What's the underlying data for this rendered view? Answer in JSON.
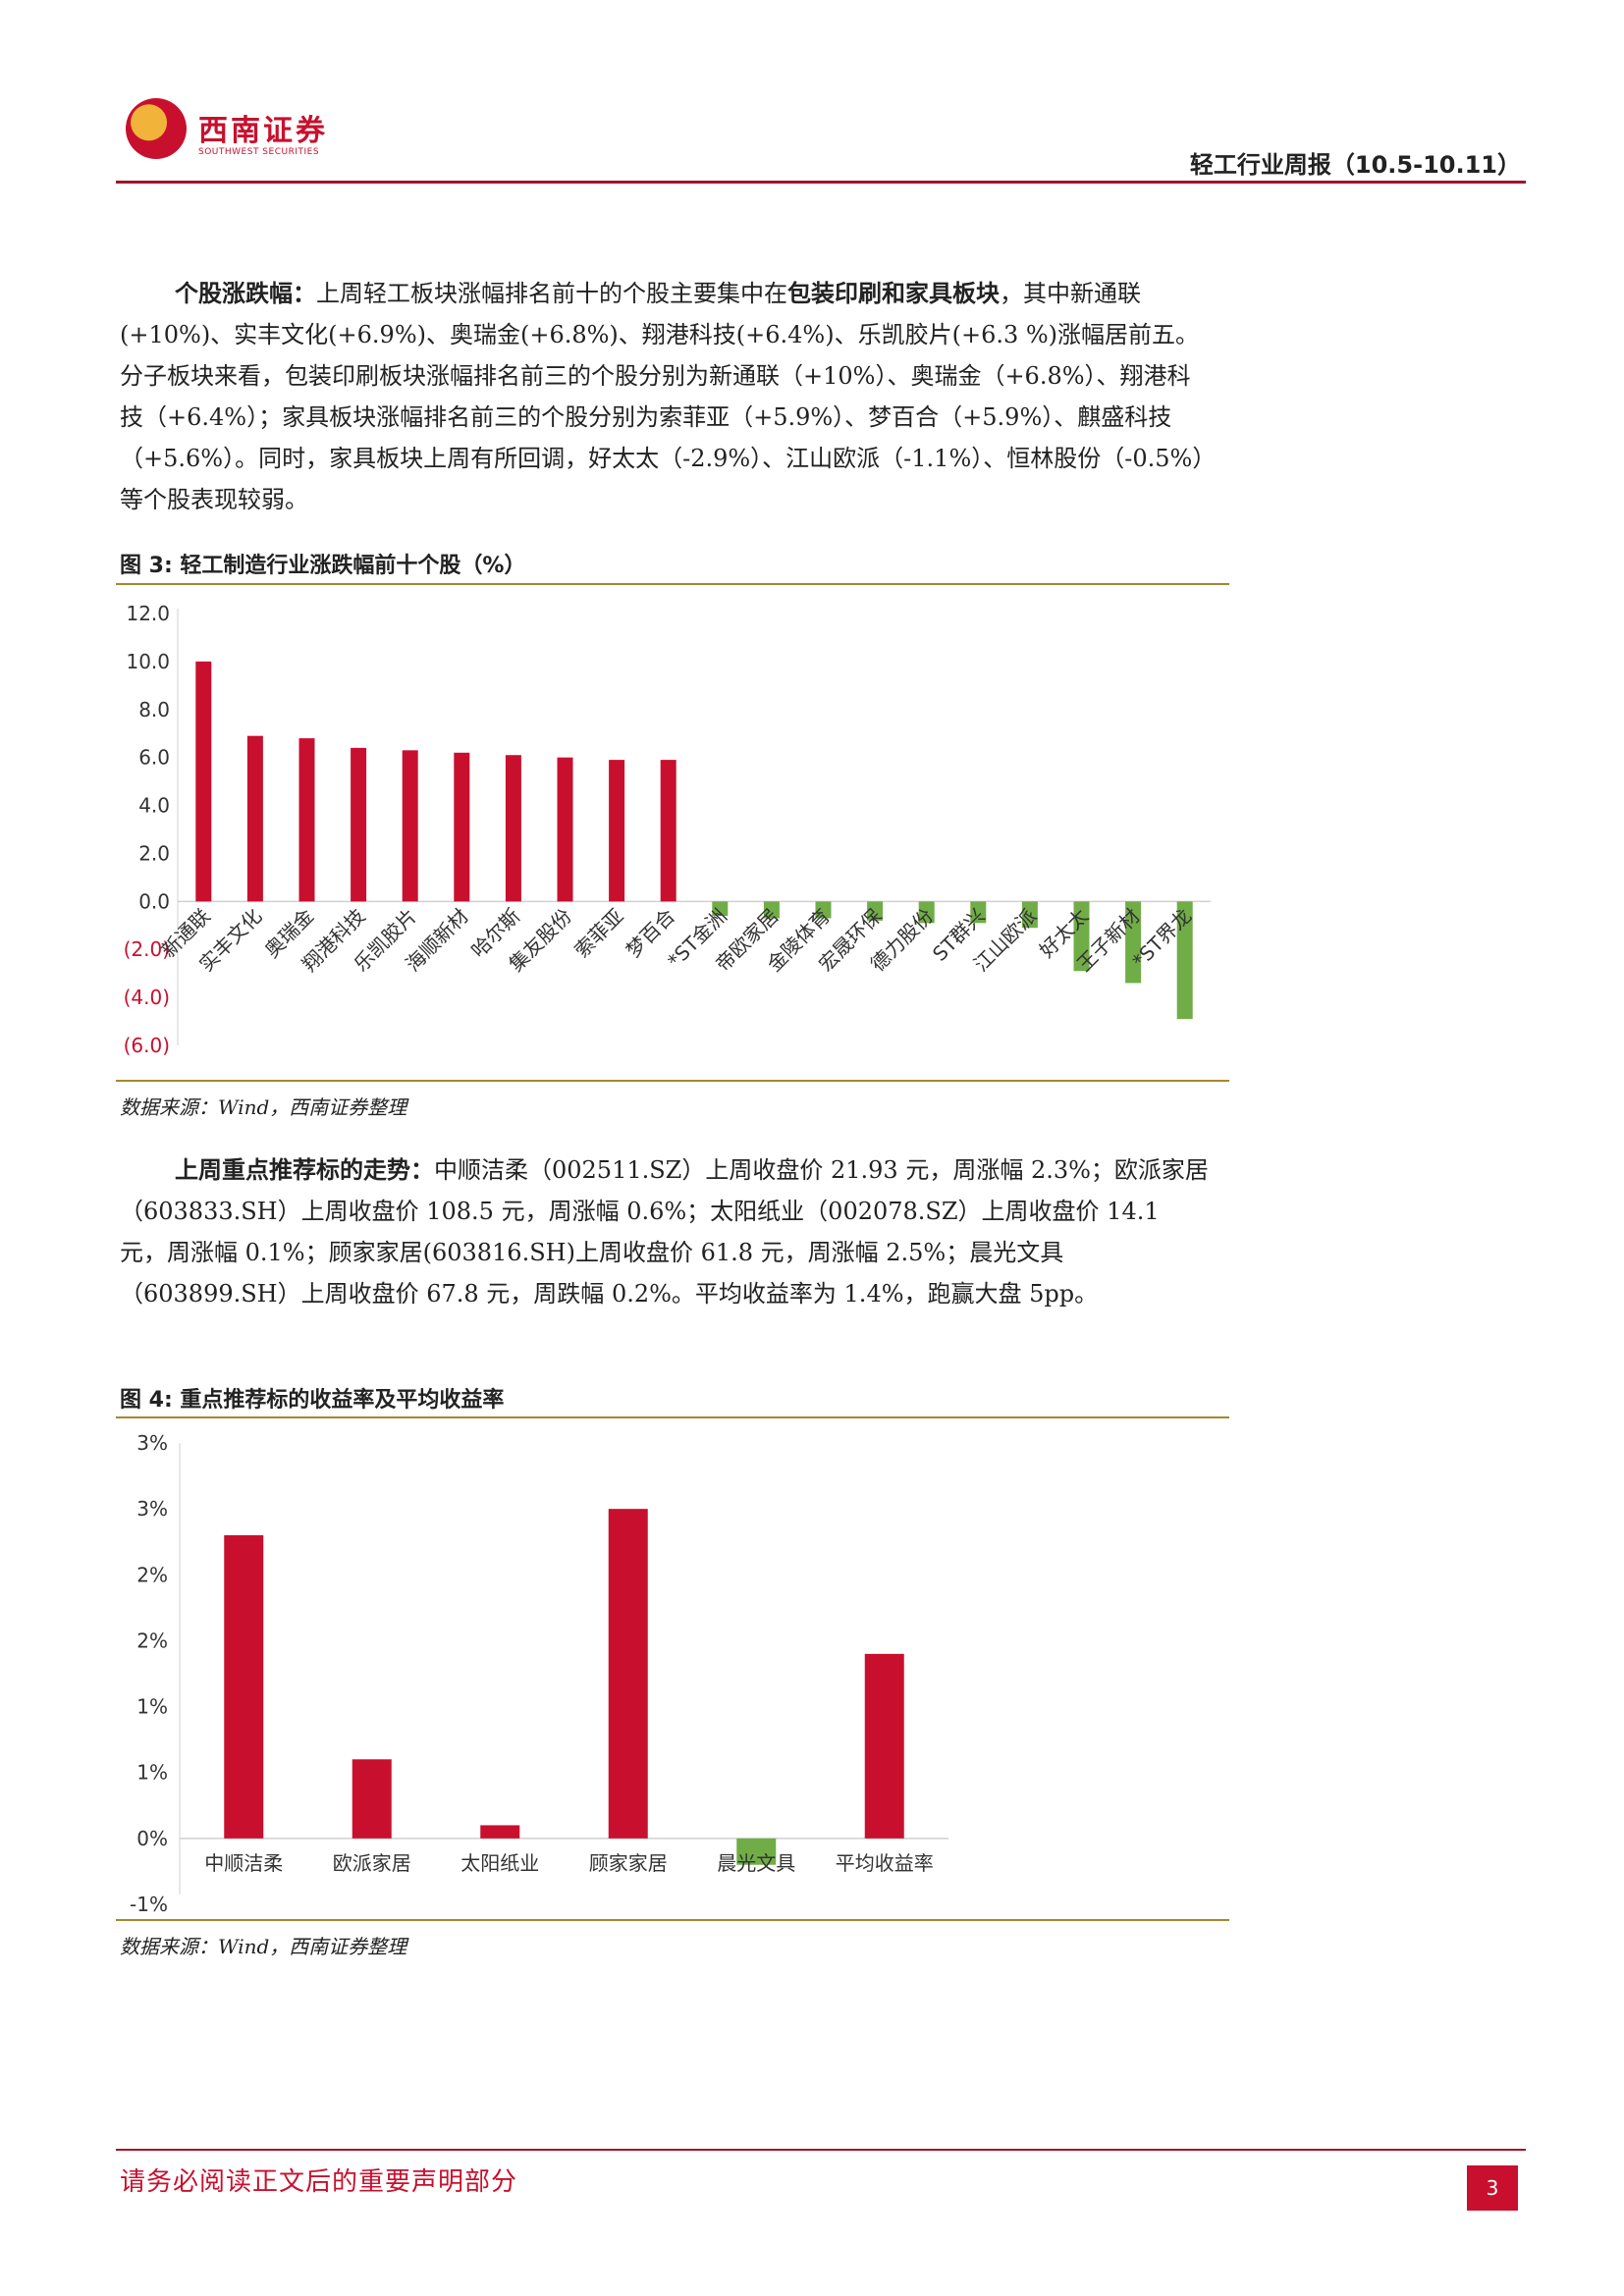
{
  "header": {
    "logo_cn": "西南证券",
    "logo_en": "SOUTHWEST SECURITIES",
    "title": "轻工行业周报（10.5-10.11）"
  },
  "para1": {
    "heading": "个股涨跌幅：",
    "s1": "上周轻工板块涨幅排名前十的个股主要集中在",
    "bold": "包装印刷和家具板块",
    "s2": "，其中新通联(+10%)、实丰文化(+6.9%)、奥瑞金(+6.8%)、翔港科技(+6.4%)、乐凯胶片(+6.3 %)涨幅居前五。分子板块来看，包装印刷板块涨幅排名前三的个股分别为新通联（+10%）、奥瑞金（+6.8%）、翔港科技（+6.4%）；家具板块涨幅排名前三的个股分别为索菲亚（+5.9%）、梦百合（+5.9%）、麒盛科技（+5.6%）。同时，家具板块上周有所回调，好太太（-2.9%）、江山欧派（-1.1%）、恒林股份（-0.5%）等个股表现较弱。"
  },
  "fig3": {
    "title": "图 3:  轻工制造行业涨跌幅前十个股（%）",
    "source": "数据来源：Wind，西南证券整理"
  },
  "para2": {
    "heading": "上周重点推荐标的走势：",
    "text": "中顺洁柔（002511.SZ）上周收盘价 21.93 元，周涨幅 2.3%；欧派家居（603833.SH）上周收盘价 108.5 元，周涨幅 0.6%；太阳纸业（002078.SZ）上周收盘价 14.1 元，周涨幅 0.1%；顾家家居(603816.SH)上周收盘价 61.8 元，周涨幅 2.5%；晨光文具（603899.SH）上周收盘价 67.8 元，周跌幅 0.2%。平均收益率为 1.4%，跑赢大盘 5pp。"
  },
  "fig4": {
    "title": "图 4:  重点推荐标的收益率及平均收益率",
    "source": "数据来源：Wind，西南证券整理"
  },
  "footer": {
    "disclaimer": "请务必阅读正文后的重要声明部分",
    "page": "3"
  },
  "colors": {
    "brand": "#c8102e",
    "positive": "#c8102e",
    "negative": "#70ad47",
    "rule_gold": "#a8862c"
  },
  "chart_data": [
    {
      "type": "bar",
      "title": "图 3:  轻工制造行业涨跌幅前十个股（%）",
      "categories": [
        "新通联",
        "实丰文化",
        "奥瑞金",
        "翔港科技",
        "乐凯胶片",
        "海顺新材",
        "哈尔斯",
        "集友股份",
        "索菲亚",
        "梦百合",
        "*ST金洲",
        "帝欧家居",
        "金陵体育",
        "宏晟环保",
        "德力股份",
        "ST群兴",
        "江山欧派",
        "好太太",
        "王子新材",
        "*ST界龙"
      ],
      "values": [
        10.0,
        6.9,
        6.8,
        6.4,
        6.3,
        6.2,
        6.1,
        6.0,
        5.9,
        5.9,
        -0.6,
        -0.7,
        -0.7,
        -0.8,
        -0.9,
        -0.9,
        -1.1,
        -2.9,
        -3.4,
        -4.9
      ],
      "yticks": [
        "12.0",
        "10.0",
        "8.0",
        "6.0",
        "4.0",
        "2.0",
        "0.0",
        "(2.0)",
        "(4.0)",
        "(6.0)"
      ],
      "ylim": [
        -6,
        12
      ],
      "grid": false
    },
    {
      "type": "bar",
      "title": "图 4:  重点推荐标的收益率及平均收益率",
      "categories": [
        "中顺洁柔",
        "欧派家居",
        "太阳纸业",
        "顾家家居",
        "晨光文具",
        "平均收益率"
      ],
      "values": [
        2.3,
        0.6,
        0.1,
        2.5,
        -0.2,
        1.4
      ],
      "yticks": [
        "3%",
        "3%",
        "2%",
        "2%",
        "1%",
        "1%",
        "0%",
        "-1%"
      ],
      "ylim": [
        -0.5,
        3.0
      ],
      "grid": false
    }
  ]
}
